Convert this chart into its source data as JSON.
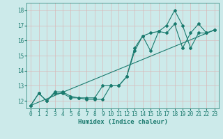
{
  "xlabel": "Humidex (Indice chaleur)",
  "xlim": [
    -0.5,
    23.5
  ],
  "ylim": [
    11.5,
    18.5
  ],
  "xticks": [
    0,
    1,
    2,
    3,
    4,
    5,
    6,
    7,
    8,
    9,
    10,
    11,
    12,
    13,
    14,
    15,
    16,
    17,
    18,
    19,
    20,
    21,
    22,
    23
  ],
  "yticks": [
    12,
    13,
    14,
    15,
    16,
    17,
    18
  ],
  "line_color": "#1a7a6e",
  "bg_color": "#cceaea",
  "grid_color": "#b0d8d8",
  "line1_x": [
    0,
    1,
    2,
    3,
    4,
    5,
    6,
    7,
    8,
    9,
    10,
    11,
    12,
    13,
    14,
    15,
    16,
    17,
    18,
    19,
    20,
    21,
    22,
    23
  ],
  "line1_y": [
    11.7,
    12.5,
    12.0,
    12.5,
    12.5,
    12.2,
    12.2,
    12.1,
    12.1,
    12.1,
    13.0,
    13.0,
    13.6,
    15.3,
    16.3,
    16.5,
    16.6,
    17.0,
    18.0,
    17.0,
    15.5,
    16.5,
    16.5,
    16.7
  ],
  "line2_x": [
    0,
    1,
    2,
    3,
    4,
    5,
    6,
    7,
    8,
    9,
    10,
    11,
    12,
    13,
    14,
    15,
    16,
    17,
    18,
    19,
    20,
    21,
    22,
    23
  ],
  "line2_y": [
    11.7,
    12.5,
    12.0,
    12.6,
    12.6,
    12.3,
    12.2,
    12.2,
    12.2,
    13.0,
    13.0,
    13.0,
    13.6,
    15.5,
    16.3,
    15.3,
    16.6,
    16.5,
    17.1,
    15.5,
    16.5,
    17.1,
    16.5,
    16.7
  ],
  "line3_x": [
    0,
    23
  ],
  "line3_y": [
    11.7,
    16.7
  ],
  "figsize": [
    3.2,
    2.0
  ],
  "dpi": 100
}
